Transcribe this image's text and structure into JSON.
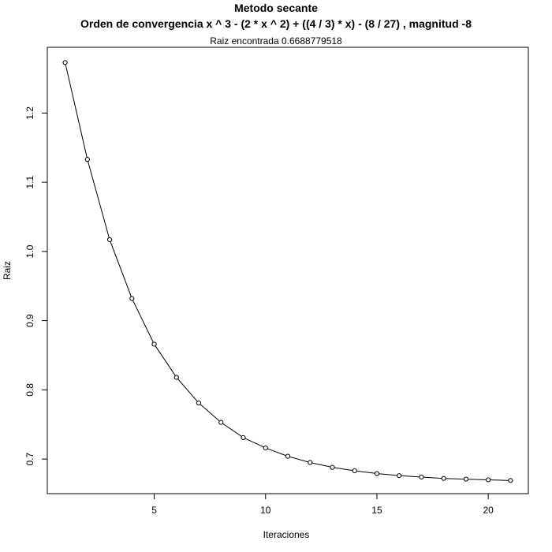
{
  "chart_data": {
    "type": "line",
    "title": "Metodo secante",
    "subtitle": "Orden de convergencia x ^ 3 - (2 * x ^ 2) + ((4 / 3) * x) - (8 / 27) , magnitud -8",
    "note": "Raiz encontrada 0.6688779518",
    "xlabel": "Iteraciones",
    "ylabel": "Raiz",
    "xlim": [
      0.2,
      21.8
    ],
    "ylim": [
      0.65,
      1.295
    ],
    "x_ticks": [
      5,
      10,
      15,
      20
    ],
    "y_ticks": [
      0.7,
      0.8,
      0.9,
      1.0,
      1.1,
      1.2
    ],
    "y_tick_labels": [
      "0.7",
      "0.8",
      "0.9",
      "1.0",
      "1.1",
      "1.2"
    ],
    "grid": false,
    "markers": "open-circle",
    "line_color": "#000000",
    "x": [
      1,
      2,
      3,
      4,
      5,
      6,
      7,
      8,
      9,
      10,
      11,
      12,
      13,
      14,
      15,
      16,
      17,
      18,
      19,
      20,
      21
    ],
    "y": [
      1.273,
      1.133,
      1.017,
      0.932,
      0.866,
      0.818,
      0.781,
      0.753,
      0.731,
      0.716,
      0.704,
      0.695,
      0.688,
      0.683,
      0.679,
      0.676,
      0.674,
      0.672,
      0.671,
      0.67,
      0.669
    ]
  }
}
